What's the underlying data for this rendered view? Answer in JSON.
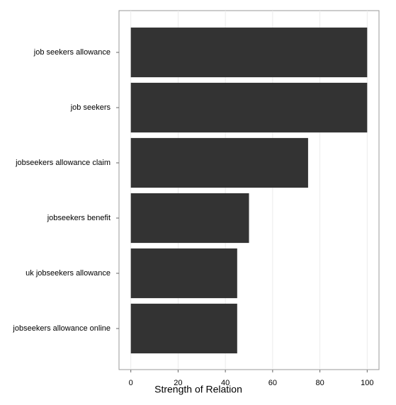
{
  "chart_data": {
    "type": "bar",
    "orientation": "horizontal",
    "xlabel": "Strength of Relation",
    "categories": [
      "job seekers allowance",
      "job seekers",
      "jobseekers allowance claim",
      "jobseekers benefit",
      "uk jobseekers allowance",
      "jobseekers allowance online"
    ],
    "values": [
      100,
      100,
      75,
      50,
      45,
      45
    ],
    "color": "#333333",
    "xlim": [
      -5,
      105
    ],
    "xticks": [
      0,
      20,
      40,
      60,
      80,
      100
    ],
    "grid": true
  }
}
